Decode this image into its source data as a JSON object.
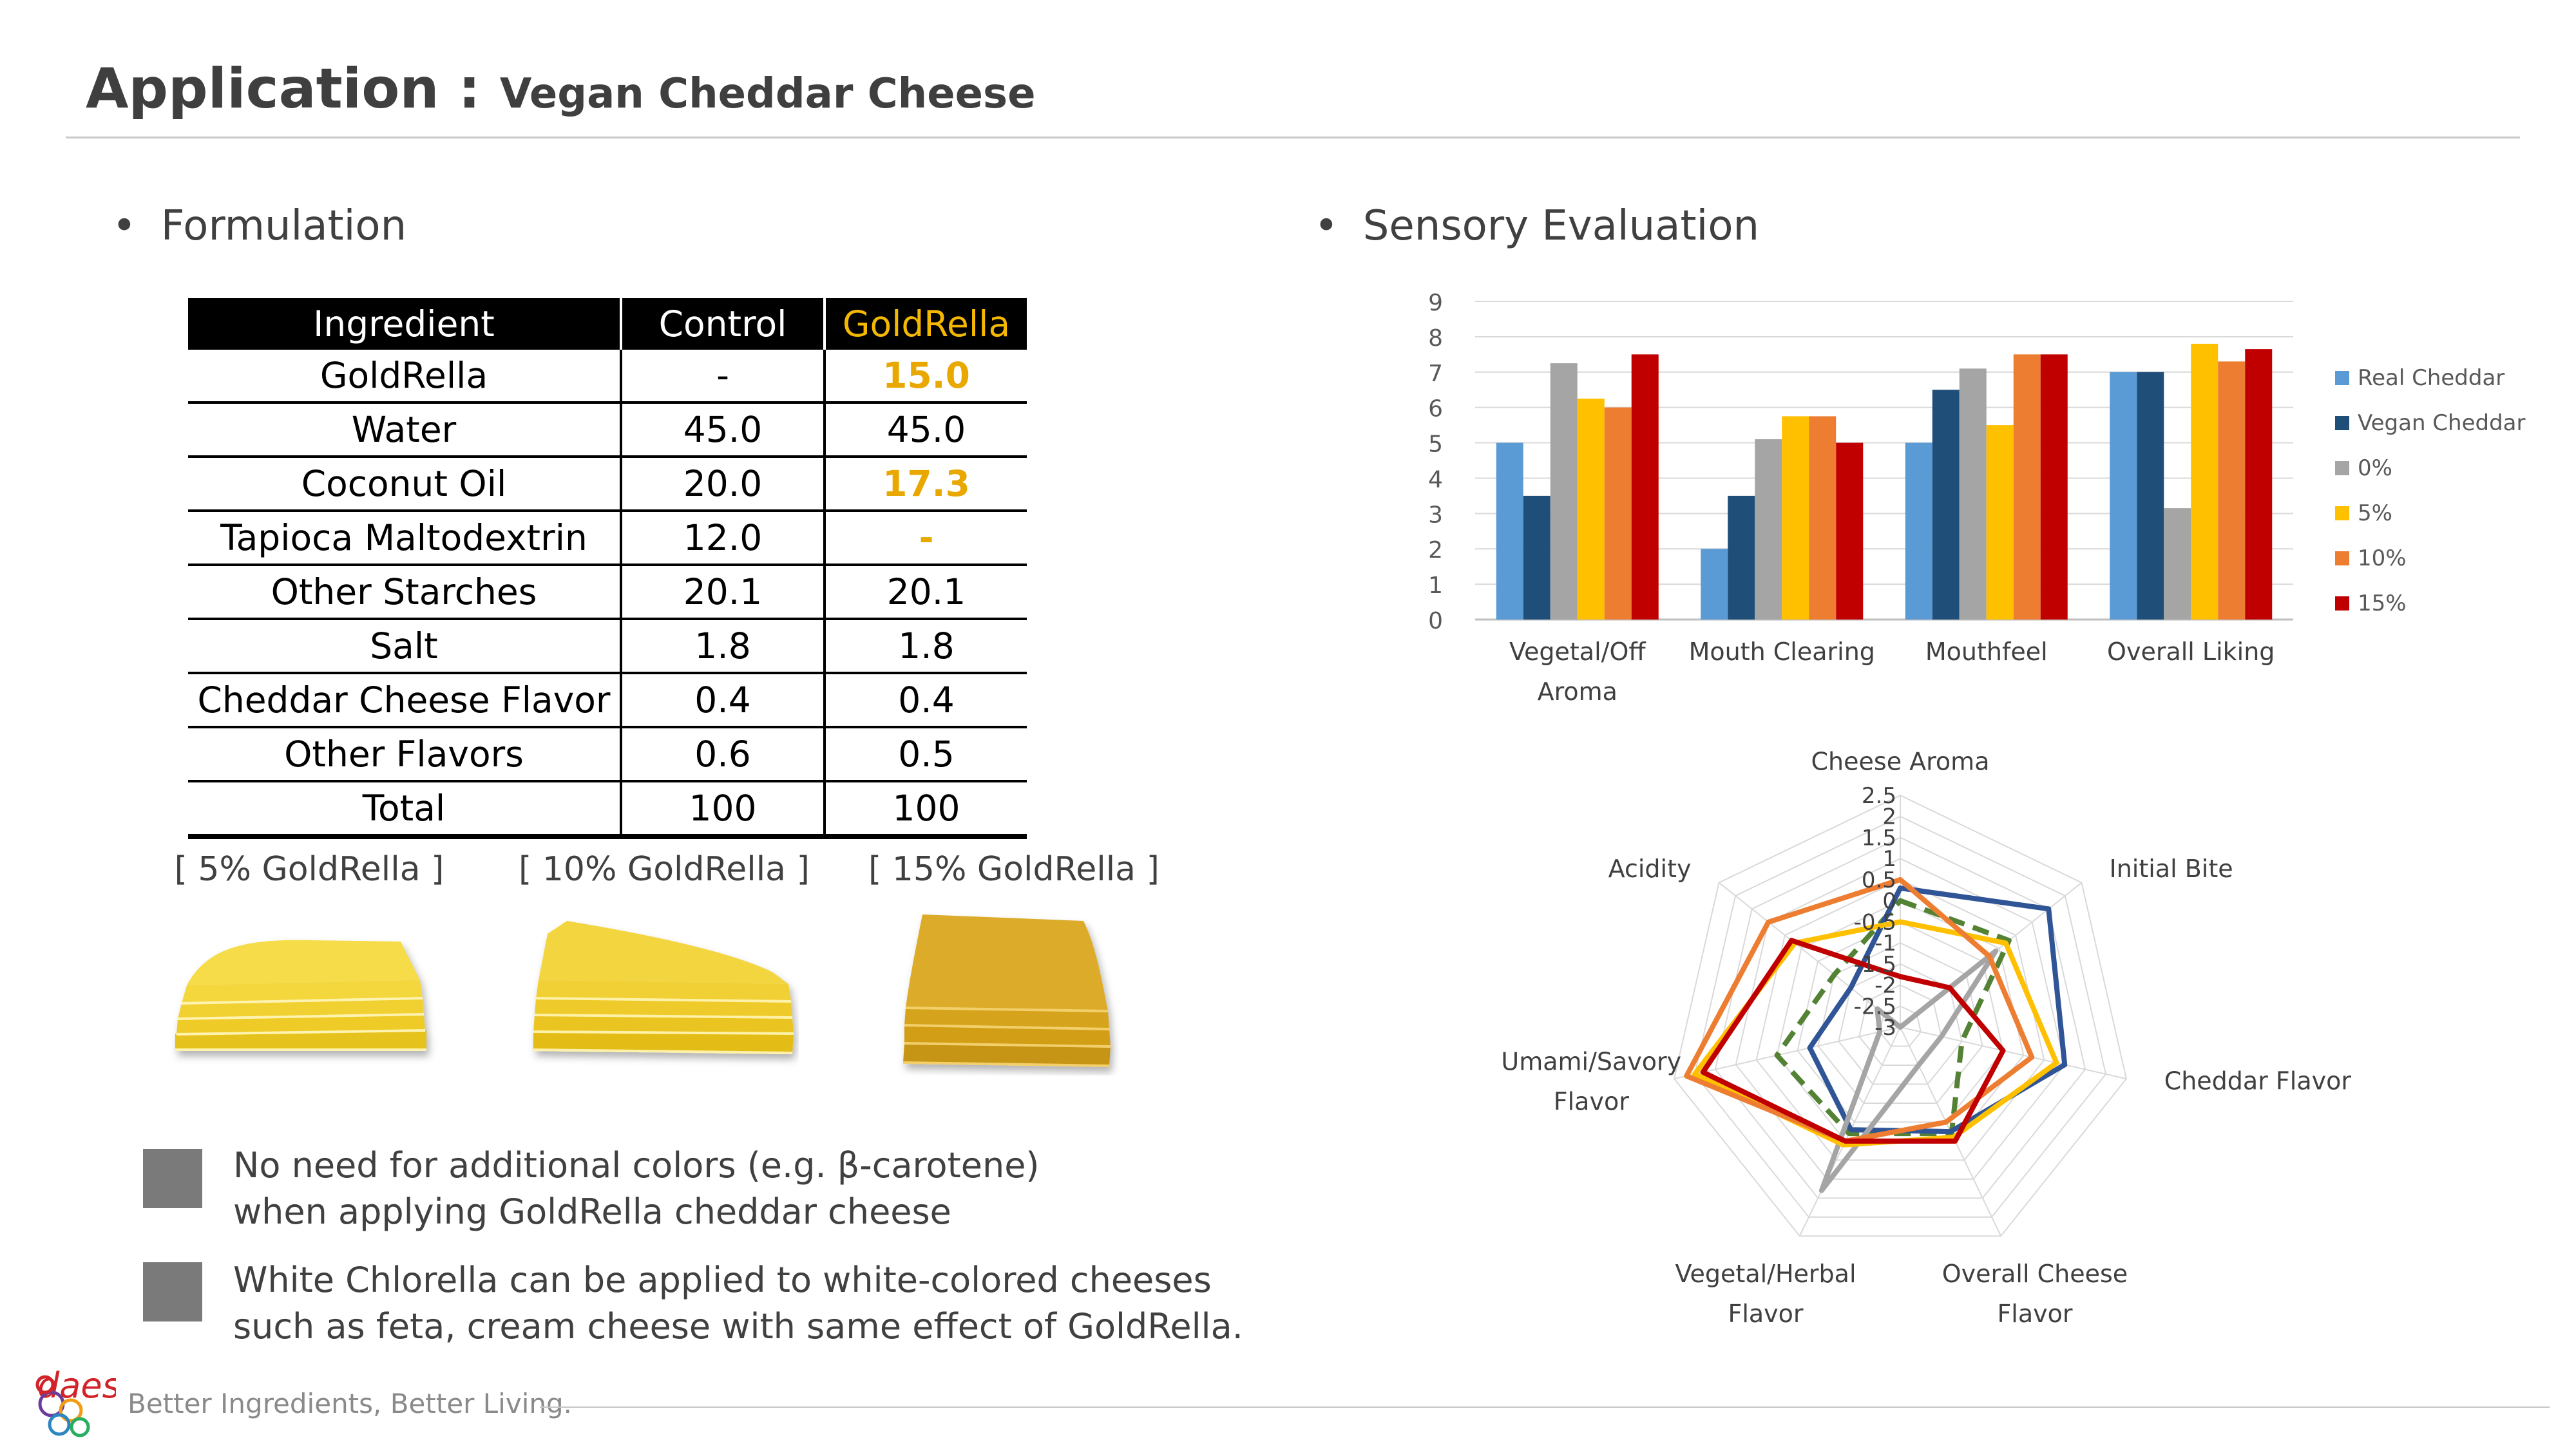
{
  "header": {
    "title_main": "Application : ",
    "title_sub": "Vegan Cheddar Cheese"
  },
  "sections": {
    "left": "Formulation",
    "right": "Sensory Evaluation",
    "bullet": "•"
  },
  "table": {
    "headers": [
      "Ingredient",
      "Control",
      "GoldRella"
    ],
    "rows": [
      [
        "GoldRella",
        "-",
        "15.0"
      ],
      [
        "Water",
        "45.0",
        "45.0"
      ],
      [
        "Coconut Oil",
        "20.0",
        "17.3"
      ],
      [
        "Tapioca Maltodextrin",
        "12.0",
        "-"
      ],
      [
        "Other Starches",
        "20.1",
        "20.1"
      ],
      [
        "Salt",
        "1.8",
        "1.8"
      ],
      [
        "Cheddar Cheese Flavor",
        "0.4",
        "0.4"
      ],
      [
        "Other Flavors",
        "0.6",
        "0.5"
      ],
      [
        "Total",
        "100",
        "100"
      ]
    ],
    "highlight_color": "#e8a800"
  },
  "samples": [
    "[ 5% GoldRella ]",
    "[ 10% GoldRella ]",
    "[ 15% GoldRella ]"
  ],
  "notes": [
    {
      "line1": "No need for additional colors (e.g. β-carotene)",
      "line2": "when applying GoldRella cheddar cheese"
    },
    {
      "line1": "White Chlorella can be applied to white-colored cheeses",
      "line2": "such as feta, cream cheese with same effect of GoldRella."
    }
  ],
  "footer": {
    "tagline": "Better Ingredients, Better Living.",
    "logo_text": "daesang"
  },
  "chart_data": [
    {
      "type": "bar",
      "categories": [
        "Vegetal/Off Aroma",
        "Mouth Clearing",
        "Mouthfeel",
        "Overall Liking"
      ],
      "ylim": [
        0,
        9
      ],
      "yticks": [
        "0",
        "1",
        "2",
        "3",
        "4",
        "5",
        "6",
        "7",
        "8",
        "9"
      ],
      "grid": true,
      "legend": "right",
      "series": [
        {
          "name": "Real Cheddar",
          "color": "#5b9bd5",
          "values": [
            5.0,
            2.0,
            5.0,
            7.0
          ]
        },
        {
          "name": "Vegan Cheddar",
          "color": "#1f4e79",
          "values": [
            3.5,
            3.5,
            6.5,
            7.0
          ]
        },
        {
          "name": "0%",
          "color": "#a5a5a5",
          "values": [
            7.25,
            5.1,
            7.1,
            3.15
          ]
        },
        {
          "name": "5%",
          "color": "#ffc000",
          "values": [
            6.25,
            5.75,
            5.5,
            7.8
          ]
        },
        {
          "name": "10%",
          "color": "#ed7d31",
          "values": [
            6.0,
            5.75,
            7.5,
            7.3
          ]
        },
        {
          "name": "15%",
          "color": "#c00000",
          "values": [
            7.5,
            5.0,
            7.5,
            7.65
          ]
        }
      ]
    },
    {
      "type": "radar",
      "axes": [
        "Cheese Aroma",
        "Initial Bite",
        "Cheddar Flavor",
        "Overall Cheese Flavor",
        "Vegetal/Herbal Flavor",
        "Umami/Savory Flavor",
        "Acidity"
      ],
      "rlim": [
        -3,
        2.5
      ],
      "ticks": [
        "2.5",
        "2",
        "1.5",
        "1",
        "0.5",
        "0",
        "-0.5",
        "-1",
        "-1.5",
        "-2",
        "-2.5",
        "-3"
      ],
      "series": [
        {
          "name": "Real Cheddar",
          "color": "#548235",
          "dashed": true,
          "values": [
            0.0,
            0.3,
            -1.5,
            -0.2,
            -0.2,
            0.0,
            -1.0
          ]
        },
        {
          "name": "Vegan Cheddar",
          "color": "#2f5597",
          "values": [
            0.3,
            1.5,
            1.0,
            -0.25,
            -0.3,
            -0.8,
            -1.5
          ]
        },
        {
          "name": "0%",
          "color": "#a5a5a5",
          "values": [
            -3.0,
            -0.1,
            -2.0,
            -2.0,
            1.3,
            -2.5,
            -2.3
          ]
        },
        {
          "name": "5%",
          "color": "#ffc000",
          "values": [
            -0.5,
            0.2,
            0.8,
            -0.1,
            0.1,
            2.0,
            0.2
          ]
        },
        {
          "name": "10%",
          "color": "#ed7d31",
          "values": [
            0.5,
            -0.3,
            0.2,
            -0.5,
            0.0,
            2.2,
            1.0
          ]
        },
        {
          "name": "15%",
          "color": "#c00000",
          "values": [
            -1.8,
            -1.5,
            -0.5,
            0.0,
            0.0,
            1.8,
            0.3
          ]
        }
      ]
    }
  ]
}
